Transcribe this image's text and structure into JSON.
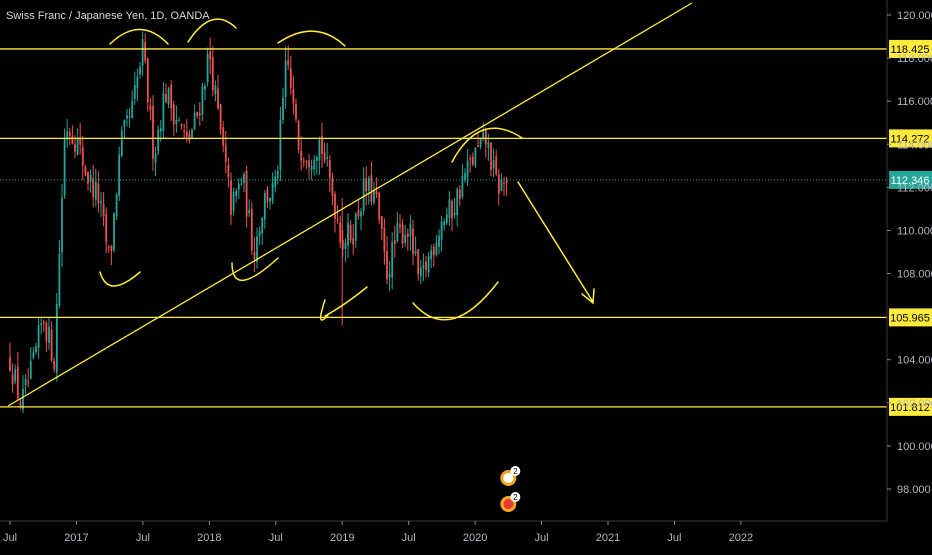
{
  "chart_data": {
    "type": "candlestick",
    "title": "Swiss Franc / Japanese Yen, 1D, OANDA",
    "y_ticks": [
      "120.000",
      "118.000",
      "116.000",
      "114.000",
      "112.000",
      "110.000",
      "108.000",
      "104.000",
      "102.000",
      "100.000",
      "98.000"
    ],
    "x_ticks": [
      "Jul",
      "2017",
      "Jul",
      "2018",
      "Jul",
      "2019",
      "Jul",
      "2020",
      "Jul",
      "2021",
      "Jul",
      "2022"
    ],
    "ylim": [
      96.6,
      120.6
    ],
    "horizontal_levels": [
      {
        "label": "118.425",
        "value": 118.425
      },
      {
        "label": "114.272",
        "value": 114.272
      },
      {
        "label": "105.965",
        "value": 105.965
      },
      {
        "label": "101.812",
        "value": 101.812
      }
    ],
    "current_price": {
      "label": "112.346",
      "value": 112.346
    },
    "price_path": [
      [
        "Jul 2016",
        104.0
      ],
      [
        "Aug 2016",
        101.9
      ],
      [
        "Sep 2016",
        103.5
      ],
      [
        "Oct 2016",
        106.0
      ],
      [
        "Nov 2016",
        104.0
      ],
      [
        "Dec 2016",
        115.0
      ],
      [
        "Jan 2017",
        114.2
      ],
      [
        "Feb 2017",
        112.5
      ],
      [
        "Mar 2017",
        111.5
      ],
      [
        "Apr 2017",
        108.5
      ],
      [
        "May 2017",
        114.0
      ],
      [
        "Jun 2017",
        115.5
      ],
      [
        "Jul 2017",
        118.4
      ],
      [
        "Aug 2017",
        113.5
      ],
      [
        "Sep 2017",
        116.5
      ],
      [
        "Oct 2017",
        115.3
      ],
      [
        "Nov 2017",
        114.0
      ],
      [
        "Dec 2017",
        115.5
      ],
      [
        "Jan 2018",
        118.3
      ],
      [
        "Feb 2018",
        114.5
      ],
      [
        "Mar 2018",
        111.0
      ],
      [
        "Apr 2018",
        112.5
      ],
      [
        "May 2018",
        109.0
      ],
      [
        "Jun 2018",
        111.5
      ],
      [
        "Jul 2018",
        112.0
      ],
      [
        "Aug 2018",
        118.0
      ],
      [
        "Sep 2018",
        114.0
      ],
      [
        "Oct 2018",
        113.5
      ],
      [
        "Nov 2018",
        114.2
      ],
      [
        "Dec 2018",
        112.0
      ],
      [
        "Jan 2019",
        109.5
      ],
      [
        "Feb 2019",
        110.0
      ],
      [
        "Mar 2019",
        112.0
      ],
      [
        "Apr 2019",
        111.6
      ],
      [
        "May 2019",
        108.0
      ],
      [
        "Jun 2019",
        109.8
      ],
      [
        "Jul 2019",
        110.1
      ],
      [
        "Aug 2019",
        107.5
      ],
      [
        "Sep 2019",
        109.0
      ],
      [
        "Oct 2019",
        110.5
      ],
      [
        "Nov 2019",
        111.0
      ],
      [
        "Dec 2019",
        112.5
      ],
      [
        "Jan 2020",
        113.5
      ],
      [
        "Feb 2020",
        114.2
      ],
      [
        "Mar 2020",
        112.0
      ],
      [
        "Apr 2020",
        112.35
      ]
    ],
    "annotations": [
      "Event marker 2",
      "Event marker 2"
    ]
  }
}
